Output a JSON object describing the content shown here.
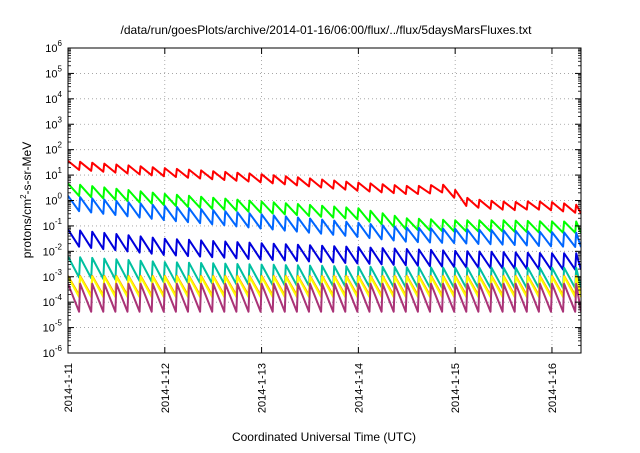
{
  "chart_data": {
    "type": "line",
    "title": "/data/run/goesPlots/archive/2014-01-16/06:00/flux/../flux/5daysMarsFluxes.txt",
    "xlabel": "Coordinated Universal Time (UTC)",
    "ylabel": {
      "prefix": "protons/cm",
      "sup": "2",
      "suffix": "-s-sr-MeV"
    },
    "yscale": "log",
    "ylim": [
      1e-06,
      1000000.0
    ],
    "y_ticks": [
      {
        "value": 1e-06,
        "base": "10",
        "exp": "-6"
      },
      {
        "value": 1e-05,
        "base": "10",
        "exp": "-5"
      },
      {
        "value": 0.0001,
        "base": "10",
        "exp": "-4"
      },
      {
        "value": 0.001,
        "base": "10",
        "exp": "-3"
      },
      {
        "value": 0.01,
        "base": "10",
        "exp": "-2"
      },
      {
        "value": 0.1,
        "base": "10",
        "exp": "-1"
      },
      {
        "value": 1,
        "base": "10",
        "exp": "0"
      },
      {
        "value": 10,
        "base": "10",
        "exp": "1"
      },
      {
        "value": 100,
        "base": "10",
        "exp": "2"
      },
      {
        "value": 1000,
        "base": "10",
        "exp": "3"
      },
      {
        "value": 10000,
        "base": "10",
        "exp": "4"
      },
      {
        "value": 100000,
        "base": "10",
        "exp": "5"
      },
      {
        "value": 1000000,
        "base": "10",
        "exp": "6"
      }
    ],
    "x_unit": "days since 2014-1-11",
    "xlim": [
      0,
      5.3
    ],
    "x_ticks": [
      {
        "value": 0,
        "label": "2014-1-11"
      },
      {
        "value": 1,
        "label": "2014-1-12"
      },
      {
        "value": 2,
        "label": "2014-1-13"
      },
      {
        "value": 3,
        "label": "2014-1-14"
      },
      {
        "value": 4,
        "label": "2014-1-15"
      },
      {
        "value": 5,
        "label": "2014-1-16"
      }
    ],
    "grid": "dotted",
    "sawtooth_period_days": 0.125,
    "series": [
      {
        "color": "#ff0000",
        "x": [
          0,
          1,
          2,
          3,
          3.5,
          3.7,
          3.85,
          4.0,
          4.1,
          4.3,
          4.6,
          4.8,
          5.0,
          5.3
        ],
        "y": [
          25,
          13,
          7.5,
          3.5,
          2.6,
          2.6,
          3.2,
          1.8,
          0.9,
          0.7,
          0.6,
          0.65,
          0.6,
          0.45
        ]
      },
      {
        "color": "#00ff00",
        "x": [
          0,
          1,
          2,
          3,
          3.5,
          4.0,
          4.5,
          5.0,
          5.3
        ],
        "y": [
          2.8,
          1.1,
          0.55,
          0.3,
          0.12,
          0.1,
          0.1,
          0.09,
          0.09
        ]
      },
      {
        "color": "#0066ff",
        "x": [
          0,
          1,
          2,
          3,
          3.5,
          4.0,
          4.5,
          5.0,
          5.3
        ],
        "y": [
          0.8,
          0.32,
          0.15,
          0.07,
          0.045,
          0.04,
          0.035,
          0.03,
          0.028
        ]
      },
      {
        "color": "#0000dd",
        "x": [
          0,
          1,
          2,
          3,
          4,
          5,
          5.3
        ],
        "y": [
          0.035,
          0.015,
          0.01,
          0.007,
          0.005,
          0.004,
          0.004
        ]
      },
      {
        "color": "#00c0a0",
        "x": [
          0,
          1,
          2,
          3,
          4,
          5,
          5.3
        ],
        "y": [
          0.0025,
          0.0015,
          0.0012,
          0.001,
          0.0009,
          0.0009,
          0.0009
        ]
      },
      {
        "color": "#ff9900",
        "x": [
          0,
          5.3
        ],
        "y": [
          0.00045,
          0.00045
        ]
      },
      {
        "color": "#ffff00",
        "x": [
          0,
          5.3
        ],
        "y": [
          0.0004,
          0.0004
        ]
      },
      {
        "color": "#aa3377",
        "x": [
          0,
          5.3
        ],
        "y": [
          0.00015,
          0.00015
        ]
      }
    ]
  }
}
